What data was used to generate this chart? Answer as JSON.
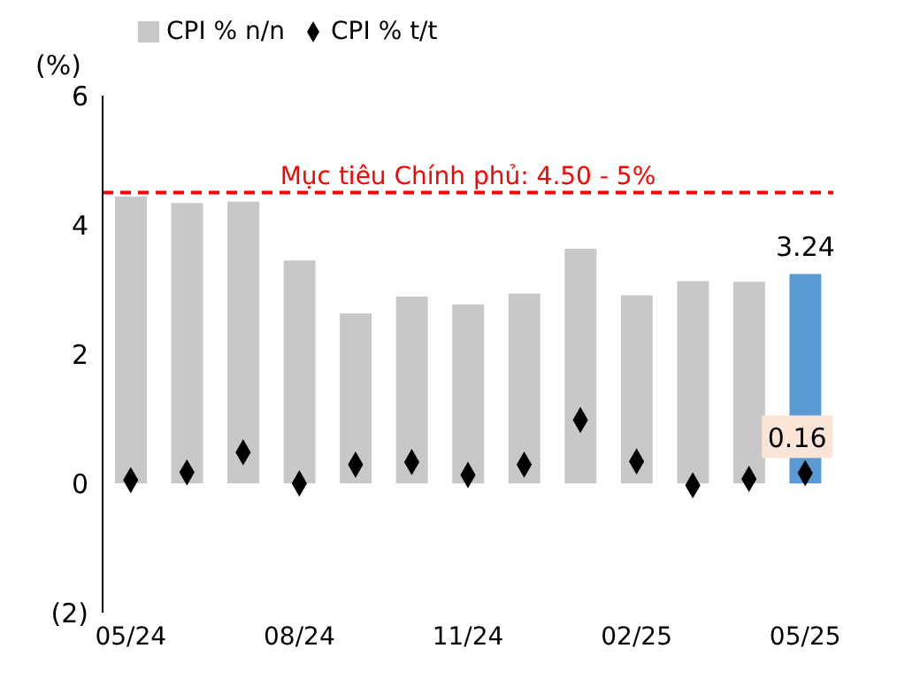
{
  "chart_data": {
    "type": "bar",
    "ylabel": "(%)",
    "categories": [
      "05/24",
      null,
      null,
      "08/24",
      null,
      null,
      "11/24",
      null,
      null,
      "02/25",
      null,
      null,
      "05/25"
    ],
    "series": [
      {
        "name": "CPI % n/n",
        "color": "#c8c8c8",
        "colors": [
          "#c8c8c8",
          "#c8c8c8",
          "#c8c8c8",
          "#c8c8c8",
          "#c8c8c8",
          "#c8c8c8",
          "#c8c8c8",
          "#c8c8c8",
          "#c8c8c8",
          "#c8c8c8",
          "#c8c8c8",
          "#c8c8c8",
          "#5b9bd5"
        ],
        "values": [
          4.44,
          4.34,
          4.36,
          3.45,
          2.63,
          2.89,
          2.77,
          2.94,
          3.63,
          2.91,
          3.13,
          3.12,
          3.24
        ],
        "value_labels": [
          null,
          null,
          null,
          null,
          null,
          null,
          null,
          null,
          null,
          null,
          null,
          null,
          "3.24"
        ]
      },
      {
        "name": "CPI % t/t",
        "type": "scatter",
        "color": "#000000",
        "marker": "diamond",
        "values": [
          0.05,
          0.17,
          0.48,
          0.0,
          0.29,
          0.33,
          0.13,
          0.29,
          0.98,
          0.34,
          -0.03,
          0.07,
          0.16
        ],
        "value_labels": [
          null,
          null,
          null,
          null,
          null,
          null,
          null,
          null,
          null,
          null,
          null,
          null,
          "0.16"
        ]
      }
    ],
    "ylim": [
      -2,
      6
    ],
    "yticks": [
      {
        "value": -2,
        "label": "(2)"
      },
      0,
      2,
      4,
      6
    ],
    "legend": "top left",
    "ref_lines": [
      {
        "axis": "y",
        "value": 4.5,
        "label": "Mục tiêu Chính phủ: 4.50 - 5%",
        "color": "#ff0000",
        "line_style": "dashed"
      }
    ]
  }
}
